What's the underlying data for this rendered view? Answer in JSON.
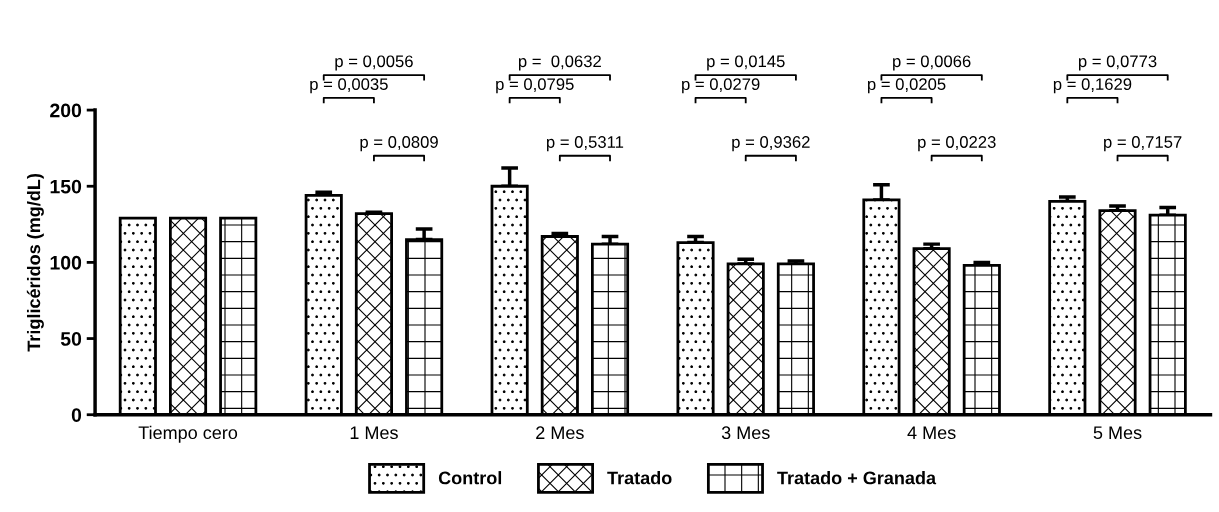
{
  "chart_data": {
    "type": "bar",
    "ylabel": "Triglicéridos (mg/dL)",
    "categories": [
      "Tiempo cero",
      "1 Mes",
      "2 Mes",
      "3 Mes",
      "4 Mes",
      "5 Mes"
    ],
    "series": [
      {
        "name": "Control",
        "color": "#000000",
        "values": [
          129,
          144,
          150,
          113,
          141,
          140
        ],
        "errors": [
          null,
          [
            144,
            146
          ],
          [
            150,
            162
          ],
          [
            113,
            117
          ],
          [
            141,
            151
          ],
          [
            140,
            143
          ]
        ]
      },
      {
        "name": "Tratado",
        "color": "#000000",
        "values": [
          129,
          132,
          117,
          99,
          109,
          134
        ],
        "errors": [
          null,
          [
            132,
            133
          ],
          [
            117,
            119
          ],
          [
            99,
            102
          ],
          [
            109,
            112
          ],
          [
            134,
            137
          ]
        ]
      },
      {
        "name": "Tratado + Granada",
        "color": "#000000",
        "values": [
          129,
          115,
          112,
          99,
          98,
          131
        ],
        "errors": [
          null,
          [
            115,
            122
          ],
          [
            112,
            117
          ],
          [
            99,
            101
          ],
          [
            98,
            100
          ],
          [
            131,
            136
          ]
        ]
      }
    ],
    "ylim": [
      0,
      200
    ],
    "yticks": [
      0,
      50,
      100,
      150,
      200
    ],
    "grid": false,
    "legend": "bottom",
    "annotations": [
      "p = 0,0056",
      "p = 0,0035",
      "p = 0,0809",
      "p =  0,0632",
      "p = 0,0795",
      "p = 0,5311",
      "p = 0,0145",
      "p = 0,0279",
      "p = 0,9362",
      "p = 0,0066",
      "p = 0,0205",
      "p = 0,0223",
      "p = 0,0773",
      "p = 0,1629",
      "p = 0,7157"
    ]
  }
}
